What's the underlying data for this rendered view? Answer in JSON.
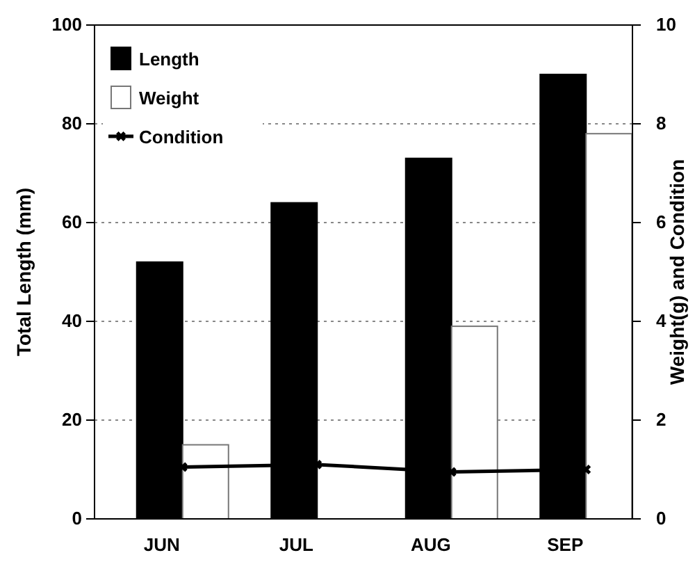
{
  "chart_data": {
    "type": "bar",
    "xlabel": null,
    "ylabel": "Total Length (mm)",
    "y2label": "Weight(g) and Condition",
    "categories": [
      "JUN",
      "JUL",
      "AUG",
      "SEP"
    ],
    "series": [
      {
        "name": "Length",
        "color": "#000000",
        "values": [
          52,
          64,
          73,
          90
        ]
      },
      {
        "name": "Weight",
        "color": "#ffffff",
        "axis": "y2",
        "values": [
          1.5,
          null,
          3.9,
          7.8
        ]
      },
      {
        "name": "Condition",
        "type": "line",
        "color": "#000000",
        "axis": "y2",
        "marker": "cross",
        "values": [
          1.05,
          1.1,
          0.95,
          1.0
        ]
      }
    ],
    "ylim": [
      0,
      100
    ],
    "yticks": [
      0,
      20,
      40,
      60,
      80,
      100
    ],
    "y2lim": [
      0,
      10
    ],
    "y2ticks": [
      0,
      2,
      4,
      6,
      8,
      10
    ],
    "grid": "y",
    "legend": "top left"
  }
}
